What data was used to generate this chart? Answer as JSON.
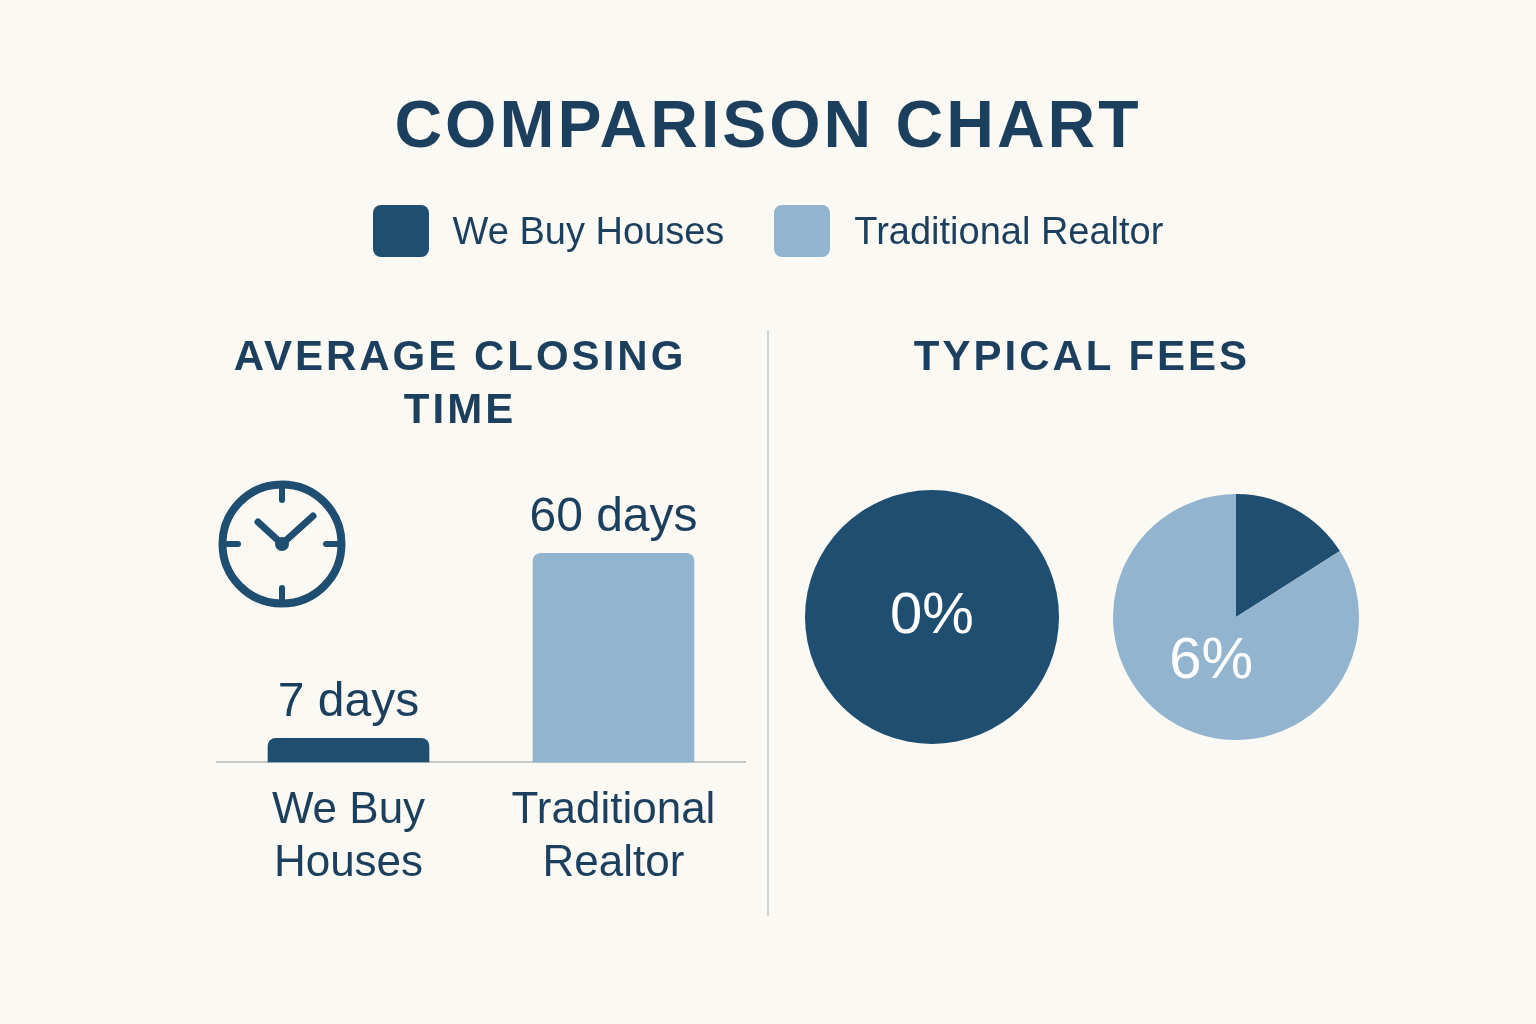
{
  "chart_data": [
    {
      "type": "bar",
      "title": "COMPARISON CHART",
      "subtitle": "AVERAGE CLOSING TIME",
      "categories": [
        "We Buy Houses",
        "Traditional Realtor"
      ],
      "series": [
        {
          "name": "We Buy Houses",
          "color": "#1f4e70",
          "values": [
            7,
            null
          ],
          "value_labels": [
            "7 days",
            null
          ]
        },
        {
          "name": "Traditional Realtor",
          "color": "#93b4cf",
          "values": [
            null,
            60
          ],
          "value_labels": [
            null,
            "60 days"
          ]
        }
      ],
      "legend": "top",
      "tick_labels": "x"
    },
    {
      "type": "pie",
      "title": "TYPICAL FEES",
      "categories": [
        null
      ],
      "values": [
        100
      ],
      "colors": [
        "#1f4e70"
      ],
      "annotations": [
        "0%"
      ]
    },
    {
      "type": "pie",
      "categories": [
        null,
        null
      ],
      "values": [
        16,
        84
      ],
      "colors": [
        "#1f4e70",
        "#93b4cf"
      ],
      "annotations": [
        "6%"
      ]
    }
  ]
}
